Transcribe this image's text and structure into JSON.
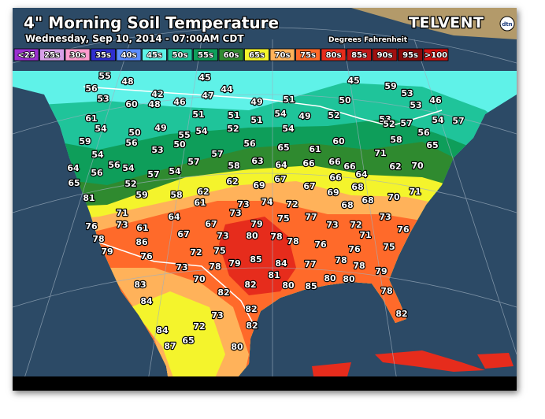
{
  "header": {
    "title": "4\" Morning Soil Temperature",
    "subtitle": "Wednesday, Sep 10, 2014 - 07:00AM CDT",
    "units_note": "Degrees Fahrenheit",
    "brand": "TELVENT",
    "brand_badge": "dtn"
  },
  "legend": [
    {
      "label": "<25",
      "color": "#9b30d0"
    },
    {
      "label": "25s",
      "color": "#d8a0e8"
    },
    {
      "label": "30s",
      "color": "#ff9ccf"
    },
    {
      "label": "35s",
      "color": "#2e2ecf"
    },
    {
      "label": "40s",
      "color": "#5b8cff"
    },
    {
      "label": "45s",
      "color": "#5ff2e8"
    },
    {
      "label": "50s",
      "color": "#1fc49a"
    },
    {
      "label": "55s",
      "color": "#0e9e5a"
    },
    {
      "label": "60s",
      "color": "#2f8a2f"
    },
    {
      "label": "65s",
      "color": "#f4f42c"
    },
    {
      "label": "70s",
      "color": "#ffb25a"
    },
    {
      "label": "75s",
      "color": "#ff6a2a"
    },
    {
      "label": "80s",
      "color": "#e62c1c"
    },
    {
      "label": "85s",
      "color": "#c01818"
    },
    {
      "label": "90s",
      "color": "#a01010"
    },
    {
      "label": "95s",
      "color": "#8a0a0a"
    },
    {
      "label": ">100",
      "color": "#d01010"
    }
  ],
  "stations": [
    55,
    48,
    45,
    45,
    56,
    42,
    47,
    44,
    59,
    53,
    46,
    53,
    60,
    48,
    46,
    49,
    51,
    50,
    53,
    61,
    51,
    51,
    51,
    54,
    49,
    52,
    53,
    57,
    54,
    57,
    54,
    50,
    49,
    55,
    54,
    52,
    54,
    56,
    52,
    59,
    56,
    53,
    50,
    56,
    65,
    61,
    60,
    58,
    65,
    54,
    57,
    71,
    64,
    56,
    56,
    54,
    57,
    54,
    57,
    58,
    63,
    64,
    66,
    66,
    66,
    62,
    70,
    65,
    52,
    67,
    67,
    66,
    64,
    81,
    59,
    58,
    62,
    62,
    69,
    68,
    70,
    69,
    71,
    61,
    73,
    74,
    72,
    68,
    68,
    71,
    64,
    73,
    75,
    77,
    73,
    76,
    73,
    61,
    67,
    79,
    73,
    72,
    76,
    78,
    86,
    67,
    73,
    80,
    78,
    78,
    71,
    79,
    76,
    72,
    75,
    76,
    76,
    75,
    73,
    78,
    79,
    85,
    84,
    77,
    78,
    78,
    79,
    81,
    70,
    83,
    82,
    80,
    85,
    80,
    80,
    78,
    82,
    84,
    82,
    82,
    73,
    84,
    72,
    82,
    87,
    65,
    80
  ]
}
